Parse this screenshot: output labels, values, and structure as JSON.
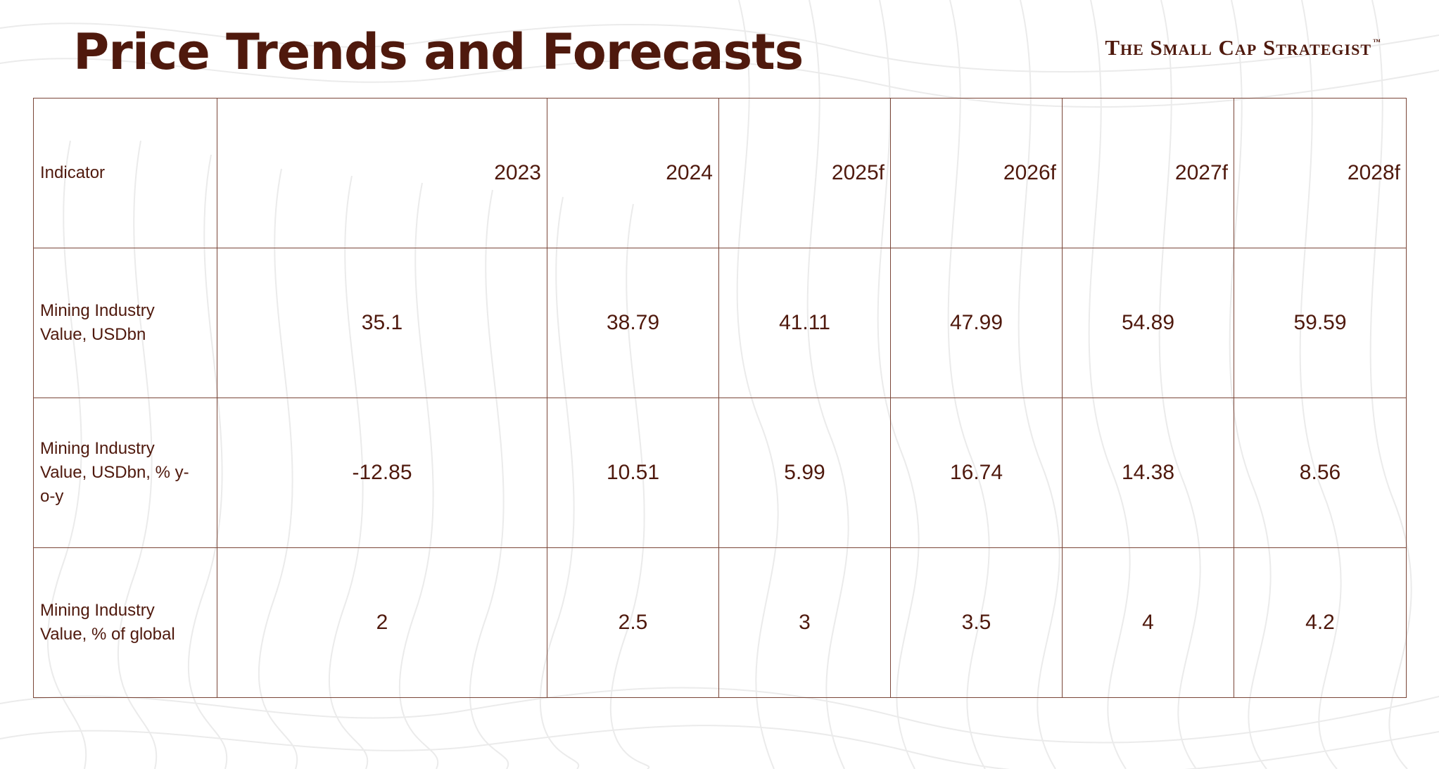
{
  "title": "Price Trends and Forecasts",
  "brand": {
    "name": "The Small Cap Strategist",
    "trademark": "™"
  },
  "colors": {
    "primary": "#4f190d",
    "border": "#7a4638",
    "background": "#ffffff",
    "pattern": "#ececec"
  },
  "table": {
    "header": {
      "label": "Indicator",
      "years": [
        "2023",
        "2024",
        "2025f",
        "2026f",
        "2027f",
        "2028f"
      ]
    },
    "rows": [
      {
        "label": "Mining Industry Value, USDbn",
        "values": [
          "35.1",
          "38.79",
          "41.11",
          "47.99",
          "54.89",
          "59.59"
        ]
      },
      {
        "label": "Mining Industry Value, USDbn, % y-o-y",
        "values": [
          "-12.85",
          "10.51",
          "5.99",
          "16.74",
          "14.38",
          "8.56"
        ]
      },
      {
        "label": "Mining Industry Value, % of global",
        "values": [
          "2",
          "2.5",
          "3",
          "3.5",
          "4",
          "4.2"
        ]
      }
    ]
  }
}
